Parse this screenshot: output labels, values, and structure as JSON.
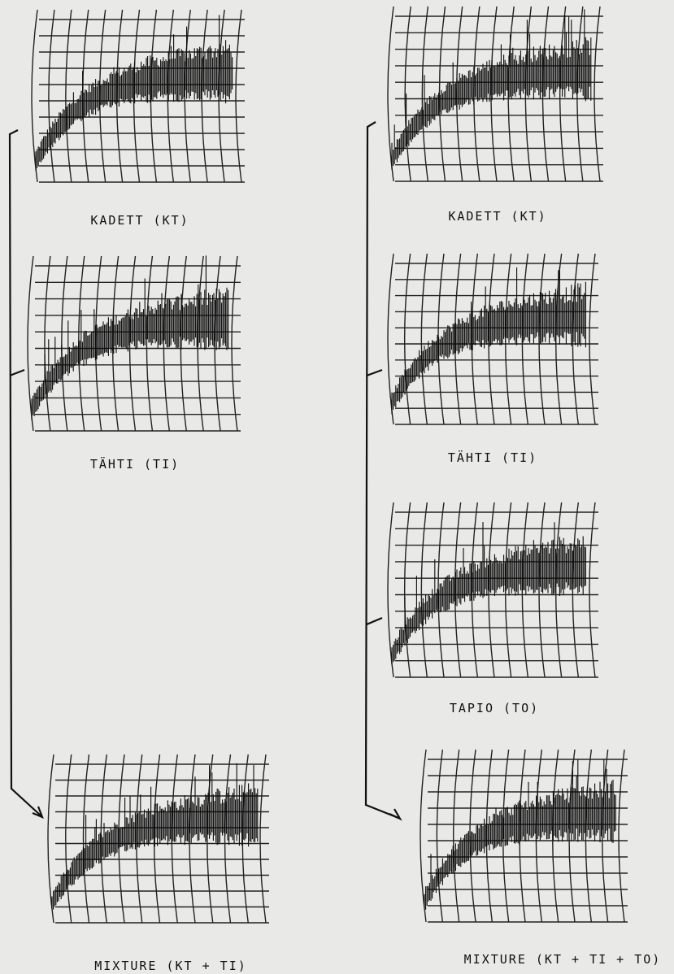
{
  "panels": [
    {
      "label": "KADETT (KT)"
    },
    {
      "label": "TÄHTI (TI)"
    },
    {
      "label": "MIXTURE (KT + TI)"
    },
    {
      "label": "KADETT (KT)"
    },
    {
      "label": "TÄHTI (TI)"
    },
    {
      "label": "TAPIO (TO)"
    },
    {
      "label": "MIXTURE (KT + TI + TO)"
    }
  ]
}
